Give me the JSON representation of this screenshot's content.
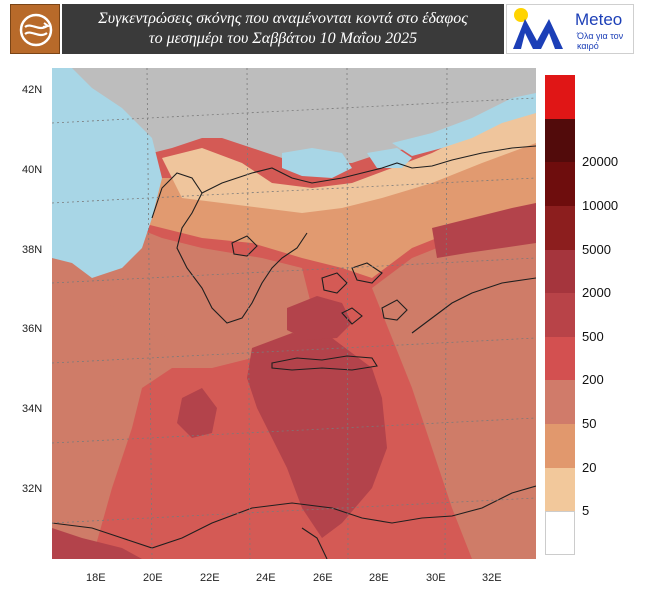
{
  "header": {
    "title_line1": "Συγκεντρώσεις σκόνης που αναμένονται κοντά στο έδαφος",
    "title_line2": "το μεσημέρι του Σαββάτου 10 Μαΐου  2025",
    "brand_name": "Meteo",
    "brand_tagline": "Όλα για τον καιρό",
    "logo_icon": "dust-swirl-icon",
    "brand_icon": "meteo-m-logo-icon"
  },
  "map": {
    "lat_labels": [
      "42N",
      "40N",
      "38N",
      "36N",
      "34N",
      "32N"
    ],
    "lon_labels": [
      "18E",
      "20E",
      "22E",
      "24E",
      "26E",
      "28E",
      "30E",
      "32E"
    ],
    "colors": {
      "sea_clean": "#a9d7e6",
      "land_masked": "#bdbdbd",
      "level_5": "#efc79d",
      "level_20": "#e19e74",
      "level_50": "#cf7a67",
      "level_200": "#d35555",
      "level_500": "#b7434a",
      "level_2000": "#a1343c"
    }
  },
  "legend": {
    "levels": [
      {
        "label": "",
        "color": "#ffffff"
      },
      {
        "label": "5",
        "color": "#f2c89b"
      },
      {
        "label": "20",
        "color": "#e1986d"
      },
      {
        "label": "50",
        "color": "#d07b6a"
      },
      {
        "label": "200",
        "color": "#d35050"
      },
      {
        "label": "500",
        "color": "#b84348"
      },
      {
        "label": "2000",
        "color": "#a5353d"
      },
      {
        "label": "5000",
        "color": "#8c1e1e"
      },
      {
        "label": "10000",
        "color": "#6e0d0d"
      },
      {
        "label": "20000",
        "color": "#520b0b"
      },
      {
        "label": "",
        "color": "#e01616"
      }
    ]
  }
}
